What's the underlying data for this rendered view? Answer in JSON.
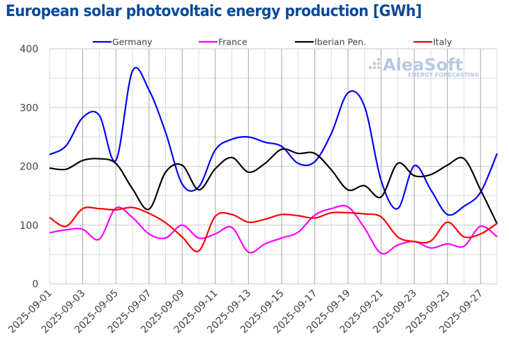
{
  "title": "European solar photovoltaic energy production [GWh]",
  "watermark": {
    "brand": "AleaSoft",
    "tagline": "ENERGY FORECASTING"
  },
  "chart_data": {
    "type": "line",
    "title": "European solar photovoltaic energy production [GWh]",
    "xlabel": "",
    "ylabel": "",
    "ylim": [
      0,
      400
    ],
    "yticks": [
      0,
      100,
      200,
      300,
      400
    ],
    "grid": true,
    "legend_position": "top",
    "x": [
      "2025-09-01",
      "2025-09-02",
      "2025-09-03",
      "2025-09-04",
      "2025-09-05",
      "2025-09-06",
      "2025-09-07",
      "2025-09-08",
      "2025-09-09",
      "2025-09-10",
      "2025-09-11",
      "2025-09-12",
      "2025-09-13",
      "2025-09-14",
      "2025-09-15",
      "2025-09-16",
      "2025-09-17",
      "2025-09-18",
      "2025-09-19",
      "2025-09-20",
      "2025-09-21",
      "2025-09-22",
      "2025-09-23",
      "2025-09-24",
      "2025-09-25",
      "2025-09-26",
      "2025-09-27",
      "2025-09-28"
    ],
    "xtick_labels": [
      "2025-09-01",
      "2025-09-03",
      "2025-09-05",
      "2025-09-07",
      "2025-09-09",
      "2025-09-11",
      "2025-09-13",
      "2025-09-15",
      "2025-09-17",
      "2025-09-19",
      "2025-09-21",
      "2025-09-23",
      "2025-09-25",
      "2025-09-27"
    ],
    "series": [
      {
        "name": "Germany",
        "color": "#0000ff",
        "values": [
          220,
          235,
          283,
          287,
          210,
          362,
          330,
          258,
          170,
          165,
          228,
          246,
          250,
          241,
          234,
          205,
          208,
          256,
          325,
          302,
          176,
          128,
          201,
          160,
          118,
          132,
          156,
          222
        ]
      },
      {
        "name": "France",
        "color": "#ff00ff",
        "values": [
          87,
          92,
          93,
          76,
          129,
          113,
          85,
          78,
          100,
          78,
          85,
          96,
          54,
          68,
          78,
          88,
          117,
          128,
          131,
          95,
          52,
          66,
          72,
          61,
          68,
          64,
          98,
          80
        ]
      },
      {
        "name": "Iberian Pen.",
        "color": "#000000",
        "values": [
          197,
          195,
          210,
          213,
          205,
          162,
          127,
          190,
          202,
          160,
          196,
          215,
          190,
          205,
          229,
          222,
          222,
          194,
          160,
          167,
          148,
          205,
          184,
          186,
          202,
          213,
          160,
          102
        ]
      },
      {
        "name": "Italy",
        "color": "#ff0000",
        "values": [
          113,
          98,
          128,
          128,
          126,
          130,
          120,
          104,
          80,
          56,
          115,
          118,
          105,
          110,
          118,
          116,
          112,
          121,
          121,
          119,
          114,
          80,
          72,
          73,
          105,
          80,
          85,
          103
        ]
      }
    ]
  }
}
